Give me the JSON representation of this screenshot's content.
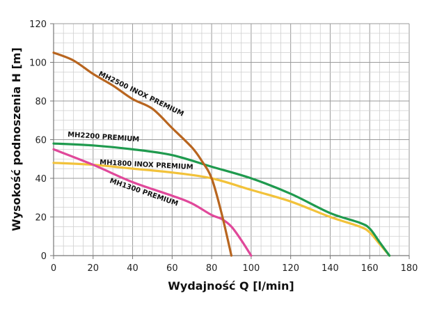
{
  "chart_data": {
    "type": "line",
    "title": "",
    "xlabel": "Wydajność Q [l/min]",
    "ylabel": "Wysokość podnoszenia H [m]",
    "xlim": [
      0,
      180
    ],
    "ylim": [
      0,
      120
    ],
    "xticks": [
      "0",
      "20",
      "40",
      "60",
      "80",
      "100",
      "120",
      "140",
      "160",
      "180"
    ],
    "yticks": [
      "0",
      "20",
      "40",
      "60",
      "80",
      "100",
      "120"
    ],
    "grid": true,
    "series": [
      {
        "name": "MH2500 INOX PREMIUM",
        "color": "#b8651f",
        "x": [
          0,
          10,
          20,
          30,
          40,
          50,
          60,
          70,
          75,
          80,
          85,
          90
        ],
        "y": [
          105,
          101,
          94,
          88,
          81,
          76,
          66,
          56,
          49,
          40,
          22,
          0
        ]
      },
      {
        "name": "MH2200 PREMIUM",
        "color": "#1f9a4e",
        "x": [
          0,
          20,
          40,
          60,
          80,
          100,
          120,
          140,
          155,
          160,
          165,
          170
        ],
        "y": [
          58,
          57,
          55,
          52,
          46,
          40,
          32,
          22,
          17,
          14,
          7,
          0
        ]
      },
      {
        "name": "MH1800 INOX PREMIUM",
        "color": "#f2c23a",
        "x": [
          0,
          20,
          40,
          60,
          80,
          100,
          120,
          140,
          155,
          160,
          165,
          170
        ],
        "y": [
          48,
          47,
          45,
          43,
          40,
          34,
          28,
          20,
          15,
          12,
          6,
          0
        ]
      },
      {
        "name": "MH1300 PREMIUM",
        "color": "#e0489a",
        "x": [
          0,
          20,
          40,
          60,
          70,
          80,
          85,
          90,
          95,
          100
        ],
        "y": [
          55,
          47,
          38,
          31,
          27,
          21,
          19,
          15,
          8,
          0
        ]
      }
    ]
  }
}
